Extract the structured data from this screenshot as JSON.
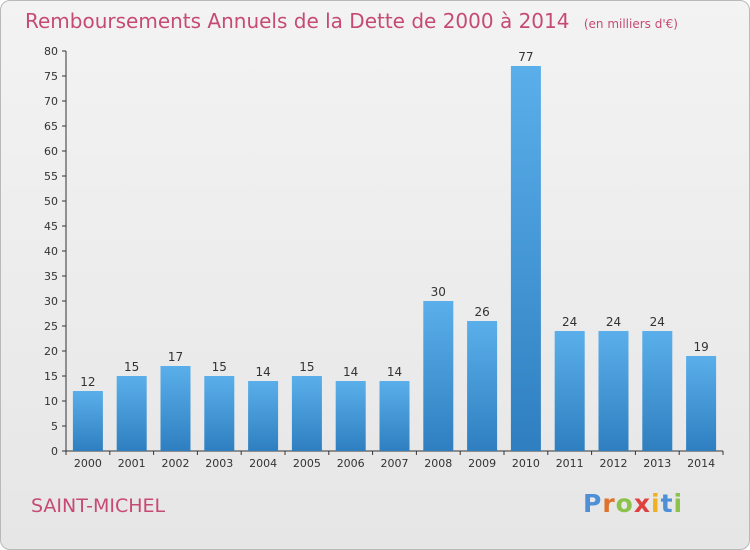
{
  "header": {
    "title": "Remboursements Annuels de la Dette de 2000 à 2014",
    "unit": "(en milliers d'€)"
  },
  "footer": {
    "city": "SAINT-MICHEL",
    "logo": "Proxiti"
  },
  "colors": {
    "title": "#c64a74",
    "bar_top": "#5aafea",
    "bar_bottom": "#2f7fc0",
    "axis": "#333333"
  },
  "chart_data": {
    "type": "bar",
    "categories": [
      "2000",
      "2001",
      "2002",
      "2003",
      "2004",
      "2005",
      "2006",
      "2007",
      "2008",
      "2009",
      "2010",
      "2011",
      "2012",
      "2013",
      "2014"
    ],
    "values": [
      12,
      15,
      17,
      15,
      14,
      15,
      14,
      14,
      30,
      26,
      77,
      24,
      24,
      24,
      19
    ],
    "ylim": [
      0,
      80
    ],
    "yticks": [
      0,
      5,
      10,
      15,
      20,
      25,
      30,
      35,
      40,
      45,
      50,
      55,
      60,
      65,
      70,
      75,
      80
    ],
    "grid": false,
    "legend": "none"
  }
}
